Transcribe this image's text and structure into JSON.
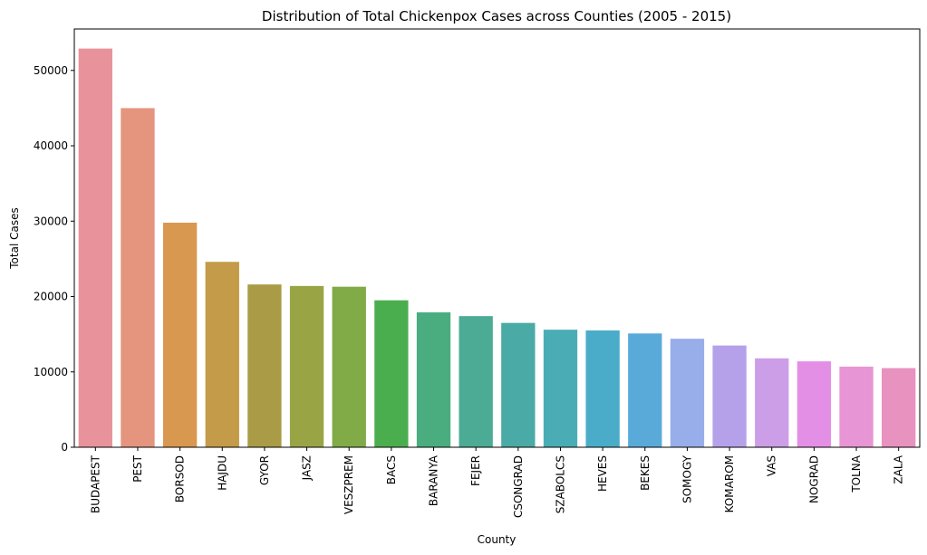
{
  "chart_data": {
    "type": "bar",
    "title": "Distribution of Total Chickenpox Cases across Counties (2005 - 2015)",
    "xlabel": "County",
    "ylabel": "Total Cases",
    "ylim": [
      0,
      55500
    ],
    "yticks": [
      0,
      10000,
      20000,
      30000,
      40000,
      50000
    ],
    "grid": false,
    "categories": [
      "BUDAPEST",
      "PEST",
      "BORSOD",
      "HAJDU",
      "GYOR",
      "JASZ",
      "VESZPREM",
      "BACS",
      "BARANYA",
      "FEJER",
      "CSONGRAD",
      "SZABOLCS",
      "HEVES",
      "BEKES",
      "SOMOGY",
      "KOMAROM",
      "VAS",
      "NOGRAD",
      "TOLNA",
      "ZALA"
    ],
    "values": [
      52900,
      45000,
      29800,
      24600,
      21600,
      21400,
      21300,
      19500,
      17900,
      17400,
      16500,
      15600,
      15500,
      15100,
      14400,
      13500,
      11800,
      11400,
      10700,
      10500
    ],
    "colors": [
      "#e8939b",
      "#e5957e",
      "#d9984f",
      "#c49b48",
      "#aa9c46",
      "#99a544",
      "#80ab47",
      "#4aae4e",
      "#4aad80",
      "#4bab95",
      "#4aaaa5",
      "#4aadb5",
      "#4aacc9",
      "#5aaad9",
      "#97aeea",
      "#b5a1ea",
      "#cd9ee8",
      "#e48fe6",
      "#e795d4",
      "#e892bf"
    ]
  }
}
